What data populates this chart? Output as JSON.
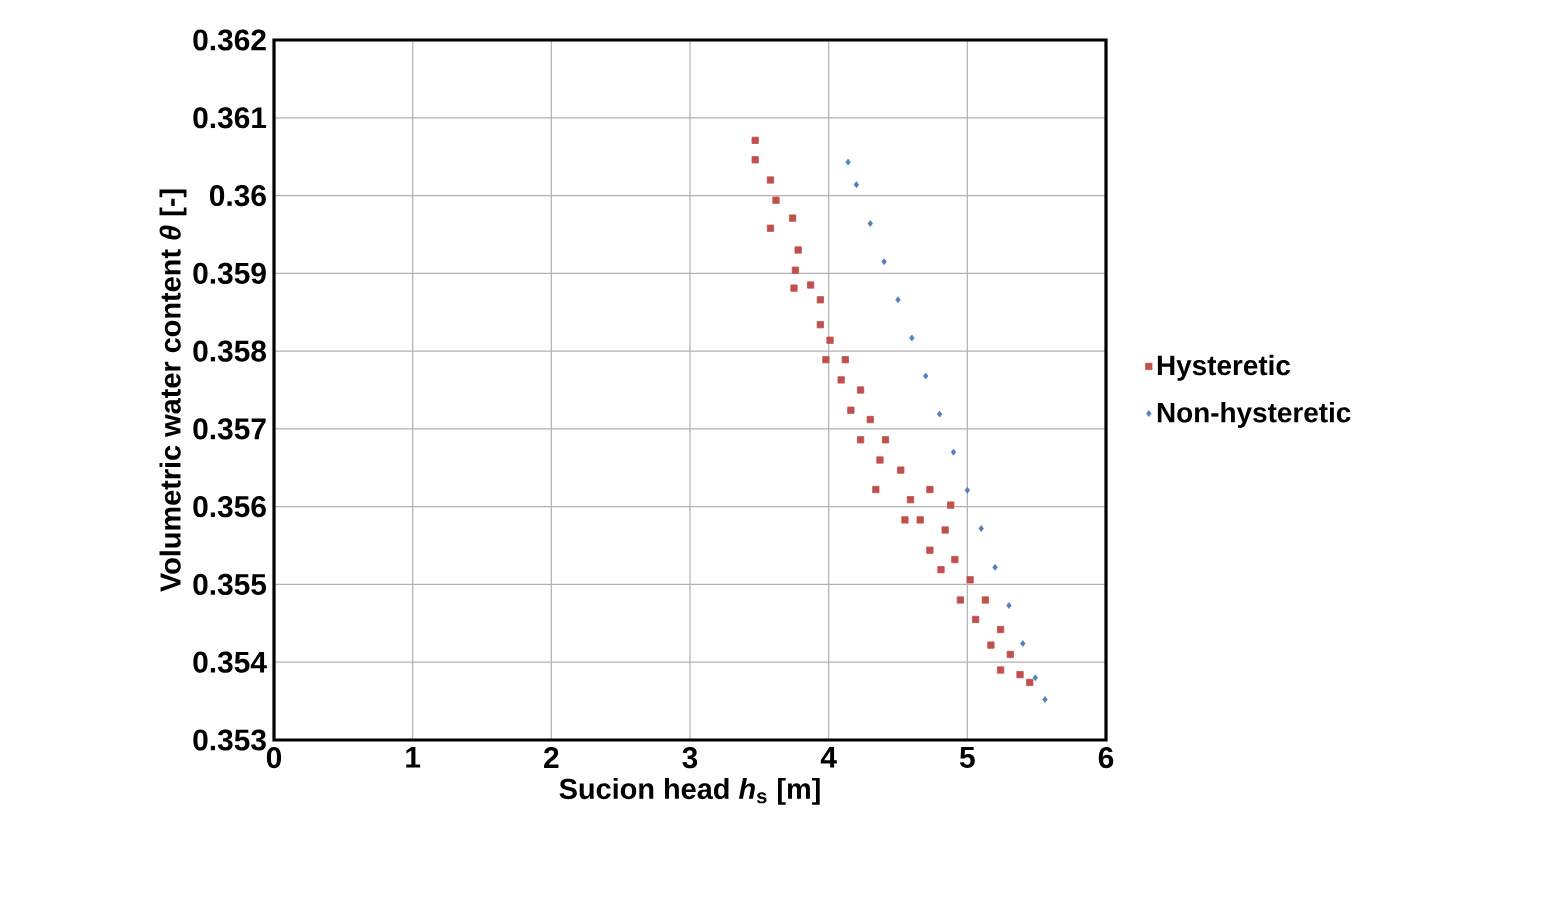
{
  "chart_data": {
    "type": "scatter",
    "xlabel": "Sucion head *h*$_{s}$ [m]",
    "ylabel": "Volumetric water content *θ* [-]",
    "xlim": [
      0,
      6
    ],
    "xticks": [
      0,
      1,
      2,
      3,
      4,
      5,
      6
    ],
    "ylim": [
      0.353,
      0.362
    ],
    "yticks": [
      0.353,
      0.354,
      0.355,
      0.356,
      0.357,
      0.358,
      0.359,
      0.36,
      0.361,
      0.362
    ],
    "grid": true,
    "legend": "right",
    "series": [
      {
        "name": "Hysteretic",
        "color": "#c0504d",
        "marker": "square",
        "x": [
          3.47,
          3.47,
          3.58,
          3.62,
          3.74,
          3.58,
          3.78,
          3.76,
          3.87,
          3.75,
          3.94,
          3.94,
          4.01,
          3.98,
          4.12,
          4.09,
          4.23,
          4.16,
          4.3,
          4.23,
          4.41,
          4.37,
          4.52,
          4.34,
          4.59,
          4.73,
          4.66,
          4.84,
          4.73,
          4.91,
          4.81,
          5.02,
          4.95,
          5.13,
          5.06,
          5.24,
          5.17,
          5.31,
          5.24,
          5.38,
          5.45,
          4.55,
          4.88
        ],
        "values": [
          0.36071,
          0.36046,
          0.3602,
          0.35994,
          0.35971,
          0.35958,
          0.3593,
          0.35904,
          0.35885,
          0.35881,
          0.35866,
          0.35834,
          0.35814,
          0.35789,
          0.35789,
          0.35763,
          0.3575,
          0.35724,
          0.35712,
          0.35686,
          0.35686,
          0.3566,
          0.35647,
          0.35622,
          0.35609,
          0.35622,
          0.35583,
          0.3557,
          0.35544,
          0.35532,
          0.35519,
          0.35506,
          0.3548,
          0.3548,
          0.35455,
          0.35442,
          0.35422,
          0.3541,
          0.3539,
          0.35384,
          0.35374,
          0.35583,
          0.35602
        ]
      },
      {
        "name": "Non-hysteretic",
        "color": "#4f81bd",
        "marker": "diamond",
        "x": [
          4.14,
          4.2,
          4.3,
          4.4,
          4.5,
          4.6,
          4.7,
          4.8,
          4.9,
          5.0,
          5.1,
          5.2,
          5.3,
          5.4,
          5.49,
          5.56
        ],
        "values": [
          0.36043,
          0.36014,
          0.35964,
          0.35915,
          0.35866,
          0.35817,
          0.35768,
          0.35719,
          0.3567,
          0.35621,
          0.35572,
          0.35522,
          0.35473,
          0.35424,
          0.3538,
          0.35352
        ]
      }
    ]
  }
}
